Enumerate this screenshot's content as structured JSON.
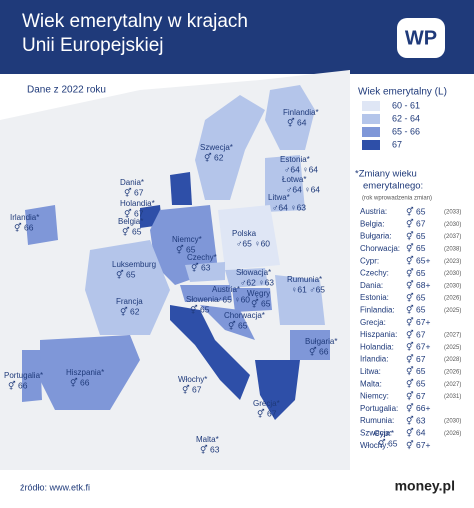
{
  "header": {
    "title_line1": "Wiek emerytalny w krajach",
    "title_line2": "Unii Europejskiej",
    "logo": "WP"
  },
  "subtitle": "Dane z 2022 roku",
  "legend": {
    "title": "Wiek emerytalny (L)",
    "items": [
      {
        "label": "60 - 61",
        "color": "#dfe6f5"
      },
      {
        "label": "62 - 64",
        "color": "#b4c5ea"
      },
      {
        "label": "65 - 66",
        "color": "#7f97d8"
      },
      {
        "label": "67",
        "color": "#2e4fa8"
      }
    ]
  },
  "changes": {
    "title_line1": "*Zmiany wieku",
    "title_line2": "emerytalnego:",
    "note": "(rok wprowadzenia zmian)",
    "rows": [
      [
        "Austria:",
        "⚥ 65",
        "(2033)"
      ],
      [
        "Belgia:",
        "⚥ 67",
        "(2030)"
      ],
      [
        "Bułgaria:",
        "⚥ 65",
        "(2037)"
      ],
      [
        "Chorwacja:",
        "⚥ 65",
        "(2038)"
      ],
      [
        "Cypr:",
        "⚥ 65+",
        "(2023)"
      ],
      [
        "Czechy:",
        "⚥ 65",
        "(2030)"
      ],
      [
        "Dania:",
        "⚥ 68+",
        "(2030)"
      ],
      [
        "Estonia:",
        "⚥ 65",
        "(2026)"
      ],
      [
        "Finlandia:",
        "⚥ 65",
        "(2025)"
      ],
      [
        "Grecja:",
        "⚥ 67+",
        ""
      ],
      [
        "Hiszpania:",
        "⚥ 67",
        "(2027)"
      ],
      [
        "Holandia:",
        "⚥ 67+",
        "(2025)"
      ],
      [
        "Irlandia:",
        "⚥ 67",
        "(2028)"
      ],
      [
        "Litwa:",
        "⚥ 65",
        "(2026)"
      ],
      [
        "Malta:",
        "⚥ 65",
        "(2027)"
      ],
      [
        "Niemcy:",
        "⚥ 67",
        "(2031)"
      ],
      [
        "Portugalia:",
        "⚥ 66+",
        ""
      ],
      [
        "Rumunia:",
        "⚥ 63",
        "(2030)"
      ],
      [
        "Szwecja:",
        "⚥ 64",
        "(2026)"
      ],
      [
        "Włochy:",
        "⚥ 67+",
        ""
      ]
    ]
  },
  "countries": [
    {
      "name": "Finlandia*",
      "value": "⚥ 64"
    },
    {
      "name": "Szwecja*",
      "value": "⚥ 62"
    },
    {
      "name": "Estonia*",
      "value": "♂64 ♀64"
    },
    {
      "name": "Łotwa*",
      "value": "♂64 ♀64"
    },
    {
      "name": "Litwa*",
      "value": "♂64 ♀63"
    },
    {
      "name": "Dania*",
      "value": "⚥ 67"
    },
    {
      "name": "Holandia*",
      "value": "⚥ 67"
    },
    {
      "name": "Irlandia*",
      "value": "⚥ 66"
    },
    {
      "name": "Belgia*",
      "value": "⚥ 65"
    },
    {
      "name": "Luksemburg",
      "value": "⚥ 65"
    },
    {
      "name": "Niemcy*",
      "value": "⚥ 65"
    },
    {
      "name": "Polska",
      "value": "♂65 ♀60"
    },
    {
      "name": "Czechy*",
      "value": "⚥ 63"
    },
    {
      "name": "Słowacja*",
      "value": "♂62 ♀63"
    },
    {
      "name": "Austria*",
      "value": "♂65 ♀60"
    },
    {
      "name": "Słowenia",
      "value": "⚥ 65"
    },
    {
      "name": "Węgry",
      "value": "⚥ 65"
    },
    {
      "name": "Chorwacja*",
      "value": "⚥ 65"
    },
    {
      "name": "Rumunia*",
      "value": "♀61 ♂65"
    },
    {
      "name": "Bułgaria*",
      "value": "⚥ 66"
    },
    {
      "name": "Francja",
      "value": "⚥ 62"
    },
    {
      "name": "Portugalia*",
      "value": "⚥ 66"
    },
    {
      "name": "Hiszpania*",
      "value": "⚥ 66"
    },
    {
      "name": "Włochy*",
      "value": "⚥ 67"
    },
    {
      "name": "Grecja*",
      "value": "⚥ 67"
    },
    {
      "name": "Malta*",
      "value": "⚥ 63"
    },
    {
      "name": "Cypr*",
      "value": "⚥ 65"
    }
  ],
  "footer": {
    "source": "źródło: www.etk.fi",
    "brand": "money.pl"
  }
}
